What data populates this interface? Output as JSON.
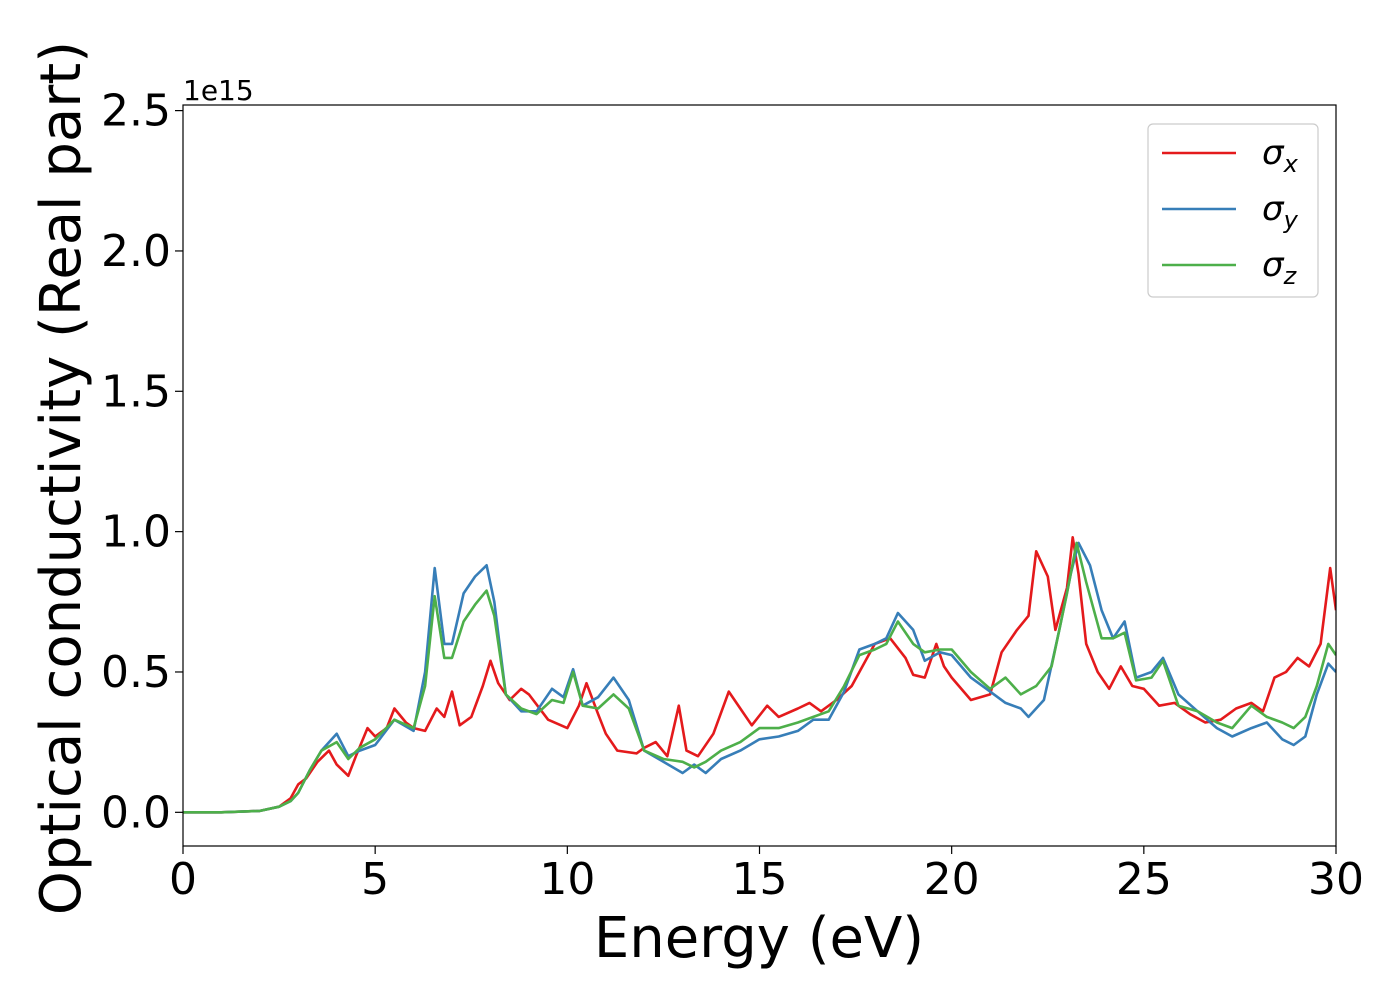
{
  "chart_data": {
    "type": "line",
    "xlabel": "Energy (eV)",
    "ylabel": "Optical conductivity (Real part)",
    "y_offset_label": "1e15",
    "xlim": [
      0,
      30
    ],
    "ylim": [
      -0.12,
      2.52
    ],
    "x_ticks": [
      0,
      5,
      10,
      15,
      20,
      25,
      30
    ],
    "x_tick_labels": [
      "0",
      "5",
      "10",
      "15",
      "20",
      "25",
      "30"
    ],
    "y_ticks": [
      0.0,
      0.5,
      1.0,
      1.5,
      2.0,
      2.5
    ],
    "y_tick_labels": [
      "0.0",
      "0.5",
      "1.0",
      "1.5",
      "2.0",
      "2.5"
    ],
    "grid": false,
    "legend_position": "top-right",
    "series": [
      {
        "name": "σx",
        "symbol": "σ",
        "subscript": "x",
        "color": "#e41a1c",
        "points": [
          [
            0,
            0
          ],
          [
            1,
            0
          ],
          [
            2,
            0.005
          ],
          [
            2.5,
            0.02
          ],
          [
            2.8,
            0.05
          ],
          [
            3,
            0.1
          ],
          [
            3.2,
            0.12
          ],
          [
            3.5,
            0.18
          ],
          [
            3.8,
            0.22
          ],
          [
            4,
            0.17
          ],
          [
            4.3,
            0.13
          ],
          [
            4.5,
            0.2
          ],
          [
            4.8,
            0.3
          ],
          [
            5,
            0.27
          ],
          [
            5.3,
            0.3
          ],
          [
            5.5,
            0.37
          ],
          [
            5.8,
            0.32
          ],
          [
            6,
            0.3
          ],
          [
            6.3,
            0.29
          ],
          [
            6.6,
            0.37
          ],
          [
            6.8,
            0.34
          ],
          [
            7,
            0.43
          ],
          [
            7.2,
            0.31
          ],
          [
            7.5,
            0.34
          ],
          [
            7.8,
            0.45
          ],
          [
            8,
            0.54
          ],
          [
            8.2,
            0.46
          ],
          [
            8.5,
            0.4
          ],
          [
            8.8,
            0.44
          ],
          [
            9,
            0.42
          ],
          [
            9.5,
            0.33
          ],
          [
            10,
            0.3
          ],
          [
            10.3,
            0.38
          ],
          [
            10.5,
            0.46
          ],
          [
            10.8,
            0.35
          ],
          [
            11,
            0.28
          ],
          [
            11.3,
            0.22
          ],
          [
            11.8,
            0.21
          ],
          [
            12,
            0.23
          ],
          [
            12.3,
            0.25
          ],
          [
            12.6,
            0.2
          ],
          [
            12.9,
            0.38
          ],
          [
            13.1,
            0.22
          ],
          [
            13.4,
            0.2
          ],
          [
            13.8,
            0.28
          ],
          [
            14.2,
            0.43
          ],
          [
            14.5,
            0.37
          ],
          [
            14.8,
            0.31
          ],
          [
            15.2,
            0.38
          ],
          [
            15.5,
            0.34
          ],
          [
            16,
            0.37
          ],
          [
            16.3,
            0.39
          ],
          [
            16.6,
            0.36
          ],
          [
            17,
            0.4
          ],
          [
            17.4,
            0.45
          ],
          [
            17.8,
            0.55
          ],
          [
            18,
            0.6
          ],
          [
            18.4,
            0.62
          ],
          [
            18.8,
            0.55
          ],
          [
            19,
            0.49
          ],
          [
            19.3,
            0.48
          ],
          [
            19.6,
            0.6
          ],
          [
            19.8,
            0.52
          ],
          [
            20,
            0.48
          ],
          [
            20.5,
            0.4
          ],
          [
            21,
            0.42
          ],
          [
            21.3,
            0.57
          ],
          [
            21.7,
            0.65
          ],
          [
            22,
            0.7
          ],
          [
            22.2,
            0.93
          ],
          [
            22.5,
            0.84
          ],
          [
            22.7,
            0.65
          ],
          [
            23,
            0.8
          ],
          [
            23.15,
            0.98
          ],
          [
            23.3,
            0.85
          ],
          [
            23.5,
            0.6
          ],
          [
            23.8,
            0.5
          ],
          [
            24.1,
            0.44
          ],
          [
            24.4,
            0.52
          ],
          [
            24.7,
            0.45
          ],
          [
            25,
            0.44
          ],
          [
            25.4,
            0.38
          ],
          [
            25.8,
            0.39
          ],
          [
            26.2,
            0.35
          ],
          [
            26.6,
            0.32
          ],
          [
            27,
            0.33
          ],
          [
            27.4,
            0.37
          ],
          [
            27.8,
            0.39
          ],
          [
            28.1,
            0.36
          ],
          [
            28.4,
            0.48
          ],
          [
            28.7,
            0.5
          ],
          [
            29,
            0.55
          ],
          [
            29.3,
            0.52
          ],
          [
            29.6,
            0.6
          ],
          [
            29.85,
            0.87
          ],
          [
            30,
            0.72
          ]
        ]
      },
      {
        "name": "σy",
        "symbol": "σ",
        "subscript": "y",
        "color": "#377eb8",
        "points": [
          [
            0,
            0
          ],
          [
            1,
            0
          ],
          [
            2,
            0.005
          ],
          [
            2.5,
            0.02
          ],
          [
            2.8,
            0.04
          ],
          [
            3,
            0.07
          ],
          [
            3.3,
            0.15
          ],
          [
            3.6,
            0.22
          ],
          [
            4,
            0.28
          ],
          [
            4.3,
            0.2
          ],
          [
            4.6,
            0.22
          ],
          [
            5,
            0.24
          ],
          [
            5.5,
            0.33
          ],
          [
            6,
            0.29
          ],
          [
            6.3,
            0.5
          ],
          [
            6.55,
            0.87
          ],
          [
            6.8,
            0.6
          ],
          [
            7,
            0.6
          ],
          [
            7.3,
            0.78
          ],
          [
            7.6,
            0.84
          ],
          [
            7.9,
            0.88
          ],
          [
            8.1,
            0.75
          ],
          [
            8.4,
            0.42
          ],
          [
            8.8,
            0.36
          ],
          [
            9.2,
            0.36
          ],
          [
            9.6,
            0.44
          ],
          [
            9.9,
            0.41
          ],
          [
            10.15,
            0.51
          ],
          [
            10.4,
            0.38
          ],
          [
            10.8,
            0.41
          ],
          [
            11.2,
            0.48
          ],
          [
            11.6,
            0.4
          ],
          [
            12,
            0.22
          ],
          [
            12.5,
            0.18
          ],
          [
            13,
            0.14
          ],
          [
            13.3,
            0.17
          ],
          [
            13.6,
            0.14
          ],
          [
            14,
            0.19
          ],
          [
            14.5,
            0.22
          ],
          [
            15,
            0.26
          ],
          [
            15.5,
            0.27
          ],
          [
            16,
            0.29
          ],
          [
            16.4,
            0.33
          ],
          [
            16.8,
            0.33
          ],
          [
            17.2,
            0.43
          ],
          [
            17.6,
            0.58
          ],
          [
            18,
            0.6
          ],
          [
            18.3,
            0.62
          ],
          [
            18.6,
            0.71
          ],
          [
            19,
            0.65
          ],
          [
            19.3,
            0.54
          ],
          [
            19.7,
            0.57
          ],
          [
            20,
            0.56
          ],
          [
            20.5,
            0.48
          ],
          [
            21,
            0.43
          ],
          [
            21.4,
            0.39
          ],
          [
            21.8,
            0.37
          ],
          [
            22,
            0.34
          ],
          [
            22.4,
            0.4
          ],
          [
            22.8,
            0.65
          ],
          [
            23.1,
            0.85
          ],
          [
            23.3,
            0.96
          ],
          [
            23.6,
            0.88
          ],
          [
            23.9,
            0.72
          ],
          [
            24.2,
            0.62
          ],
          [
            24.5,
            0.68
          ],
          [
            24.8,
            0.48
          ],
          [
            25.2,
            0.5
          ],
          [
            25.5,
            0.55
          ],
          [
            25.9,
            0.42
          ],
          [
            26.4,
            0.36
          ],
          [
            26.9,
            0.3
          ],
          [
            27.3,
            0.27
          ],
          [
            27.8,
            0.3
          ],
          [
            28.2,
            0.32
          ],
          [
            28.6,
            0.26
          ],
          [
            28.9,
            0.24
          ],
          [
            29.2,
            0.27
          ],
          [
            29.5,
            0.42
          ],
          [
            29.8,
            0.53
          ],
          [
            30,
            0.5
          ]
        ]
      },
      {
        "name": "σz",
        "symbol": "σ",
        "subscript": "z",
        "color": "#4daf4a",
        "points": [
          [
            0,
            0
          ],
          [
            1,
            0
          ],
          [
            2,
            0.005
          ],
          [
            2.5,
            0.02
          ],
          [
            2.8,
            0.04
          ],
          [
            3,
            0.07
          ],
          [
            3.3,
            0.15
          ],
          [
            3.6,
            0.22
          ],
          [
            4,
            0.25
          ],
          [
            4.3,
            0.19
          ],
          [
            4.6,
            0.23
          ],
          [
            5,
            0.26
          ],
          [
            5.5,
            0.33
          ],
          [
            6,
            0.3
          ],
          [
            6.3,
            0.45
          ],
          [
            6.55,
            0.77
          ],
          [
            6.8,
            0.55
          ],
          [
            7,
            0.55
          ],
          [
            7.3,
            0.68
          ],
          [
            7.6,
            0.74
          ],
          [
            7.9,
            0.79
          ],
          [
            8.1,
            0.7
          ],
          [
            8.4,
            0.42
          ],
          [
            8.8,
            0.37
          ],
          [
            9.2,
            0.35
          ],
          [
            9.6,
            0.4
          ],
          [
            9.9,
            0.39
          ],
          [
            10.15,
            0.5
          ],
          [
            10.4,
            0.38
          ],
          [
            10.8,
            0.37
          ],
          [
            11.2,
            0.42
          ],
          [
            11.6,
            0.37
          ],
          [
            12,
            0.22
          ],
          [
            12.5,
            0.19
          ],
          [
            13,
            0.18
          ],
          [
            13.3,
            0.16
          ],
          [
            13.6,
            0.18
          ],
          [
            14,
            0.22
          ],
          [
            14.5,
            0.25
          ],
          [
            15,
            0.3
          ],
          [
            15.5,
            0.3
          ],
          [
            16,
            0.32
          ],
          [
            16.4,
            0.34
          ],
          [
            16.8,
            0.36
          ],
          [
            17.2,
            0.45
          ],
          [
            17.6,
            0.56
          ],
          [
            18,
            0.58
          ],
          [
            18.3,
            0.6
          ],
          [
            18.6,
            0.68
          ],
          [
            19,
            0.6
          ],
          [
            19.3,
            0.57
          ],
          [
            19.7,
            0.58
          ],
          [
            20,
            0.58
          ],
          [
            20.5,
            0.5
          ],
          [
            21,
            0.44
          ],
          [
            21.4,
            0.48
          ],
          [
            21.8,
            0.42
          ],
          [
            22.2,
            0.45
          ],
          [
            22.6,
            0.52
          ],
          [
            23,
            0.78
          ],
          [
            23.25,
            0.96
          ],
          [
            23.5,
            0.82
          ],
          [
            23.9,
            0.62
          ],
          [
            24.2,
            0.62
          ],
          [
            24.5,
            0.64
          ],
          [
            24.8,
            0.47
          ],
          [
            25.2,
            0.48
          ],
          [
            25.5,
            0.54
          ],
          [
            25.9,
            0.38
          ],
          [
            26.4,
            0.36
          ],
          [
            26.9,
            0.32
          ],
          [
            27.3,
            0.3
          ],
          [
            27.8,
            0.38
          ],
          [
            28.2,
            0.34
          ],
          [
            28.6,
            0.32
          ],
          [
            28.9,
            0.3
          ],
          [
            29.2,
            0.34
          ],
          [
            29.5,
            0.45
          ],
          [
            29.8,
            0.6
          ],
          [
            30,
            0.56
          ]
        ]
      }
    ]
  }
}
